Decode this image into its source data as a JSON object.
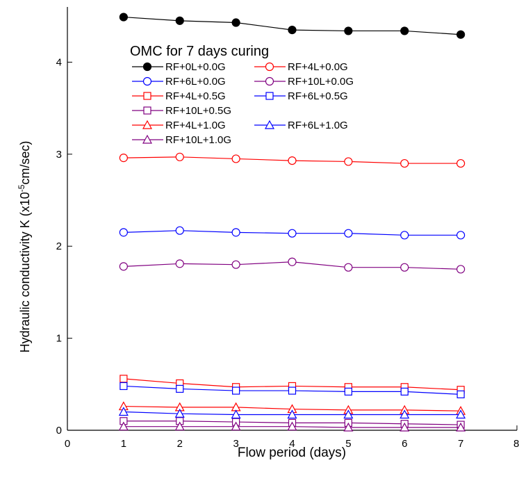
{
  "chart_data": {
    "type": "line",
    "x_label": "Flow period (days)",
    "y_label_parts": [
      "Hydraulic conductivity K (x10",
      "-5",
      "cm/sec)"
    ],
    "legend_title": "OMC for 7 days curing",
    "xlim": [
      0,
      8
    ],
    "xticks": [
      0,
      1,
      2,
      3,
      4,
      5,
      6,
      7,
      8
    ],
    "ylim": [
      0,
      4.6
    ],
    "yticks": [
      0,
      1,
      2,
      3,
      4
    ],
    "x": [
      1,
      2,
      3,
      4,
      5,
      6,
      7
    ],
    "series": [
      {
        "name": "RF+0L+0.0G",
        "color": "#000000",
        "marker": "circle",
        "filled": true,
        "values": [
          4.49,
          4.45,
          4.43,
          4.35,
          4.34,
          4.34,
          4.3
        ]
      },
      {
        "name": "RF+4L+0.0G",
        "color": "#ff0000",
        "marker": "circle",
        "filled": false,
        "values": [
          2.96,
          2.97,
          2.95,
          2.93,
          2.92,
          2.9,
          2.9
        ]
      },
      {
        "name": "RF+6L+0.0G",
        "color": "#0000ff",
        "marker": "circle",
        "filled": false,
        "values": [
          2.15,
          2.17,
          2.15,
          2.14,
          2.14,
          2.12,
          2.12
        ]
      },
      {
        "name": "RF+10L+0.0G",
        "color": "#800080",
        "marker": "circle",
        "filled": false,
        "values": [
          1.78,
          1.81,
          1.8,
          1.83,
          1.77,
          1.77,
          1.75
        ]
      },
      {
        "name": "RF+4L+0.5G",
        "color": "#ff0000",
        "marker": "square",
        "filled": false,
        "values": [
          0.56,
          0.51,
          0.47,
          0.48,
          0.47,
          0.47,
          0.44
        ]
      },
      {
        "name": "RF+6L+0.5G",
        "color": "#0000ff",
        "marker": "square",
        "filled": false,
        "values": [
          0.48,
          0.45,
          0.43,
          0.43,
          0.42,
          0.42,
          0.39
        ]
      },
      {
        "name": "RF+10L+0.5G",
        "color": "#800080",
        "marker": "square",
        "filled": false,
        "values": [
          0.1,
          0.1,
          0.09,
          0.08,
          0.08,
          0.07,
          0.06
        ]
      },
      {
        "name": "RF+4L+1.0G",
        "color": "#ff0000",
        "marker": "triangle",
        "filled": false,
        "values": [
          0.26,
          0.25,
          0.25,
          0.23,
          0.22,
          0.22,
          0.21
        ]
      },
      {
        "name": "RF+6L+1.0G",
        "color": "#0000ff",
        "marker": "triangle",
        "filled": false,
        "values": [
          0.2,
          0.18,
          0.17,
          0.17,
          0.17,
          0.17,
          0.17
        ]
      },
      {
        "name": "RF+10L+1.0G",
        "color": "#800080",
        "marker": "triangle",
        "filled": false,
        "values": [
          0.04,
          0.04,
          0.04,
          0.04,
          0.03,
          0.03,
          0.03
        ]
      }
    ]
  }
}
